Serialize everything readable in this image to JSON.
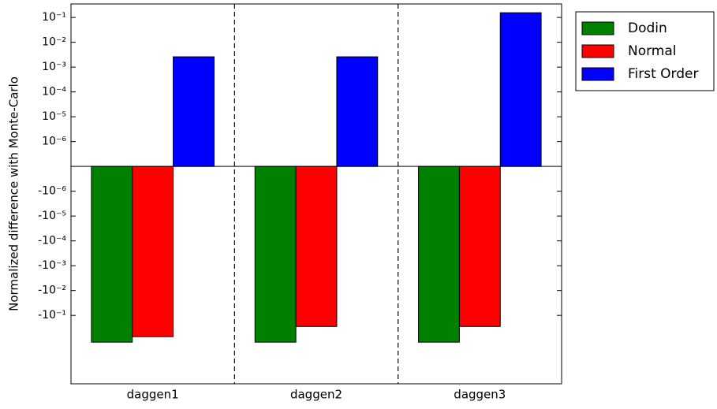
{
  "chart_data": {
    "type": "bar",
    "ylabel": "Normalized difference with Monte-Carlo",
    "categories": [
      "daggen1",
      "daggen2",
      "daggen3"
    ],
    "series": [
      {
        "name": "Dodin",
        "color": "#008000",
        "values": [
          -1.2,
          -1.2,
          -1.2
        ]
      },
      {
        "name": "Normal",
        "color": "#ff0000",
        "values": [
          -0.72,
          -0.28,
          -0.28
        ]
      },
      {
        "name": "First Order",
        "color": "#0000ff",
        "values": [
          0.0026,
          0.0026,
          0.155
        ]
      }
    ],
    "yscale": "symlog",
    "linthresh": 1e-06,
    "ylim": [
      -57,
      0.35
    ],
    "yticks": [
      {
        "value": 0.1,
        "label": "10⁻¹"
      },
      {
        "value": 0.01,
        "label": "10⁻²"
      },
      {
        "value": 0.001,
        "label": "10⁻³"
      },
      {
        "value": 0.0001,
        "label": "10⁻⁴"
      },
      {
        "value": 1e-05,
        "label": "10⁻⁵"
      },
      {
        "value": 1e-06,
        "label": "10⁻⁶"
      },
      {
        "value": -1e-06,
        "label": "-10⁻⁶"
      },
      {
        "value": -1e-05,
        "label": "-10⁻⁵"
      },
      {
        "value": -0.0001,
        "label": "-10⁻⁴"
      },
      {
        "value": -0.001,
        "label": "-10⁻³"
      },
      {
        "value": -0.01,
        "label": "-10⁻²"
      },
      {
        "value": -0.1,
        "label": "-10⁻¹"
      }
    ],
    "legend": "upper right outside"
  }
}
